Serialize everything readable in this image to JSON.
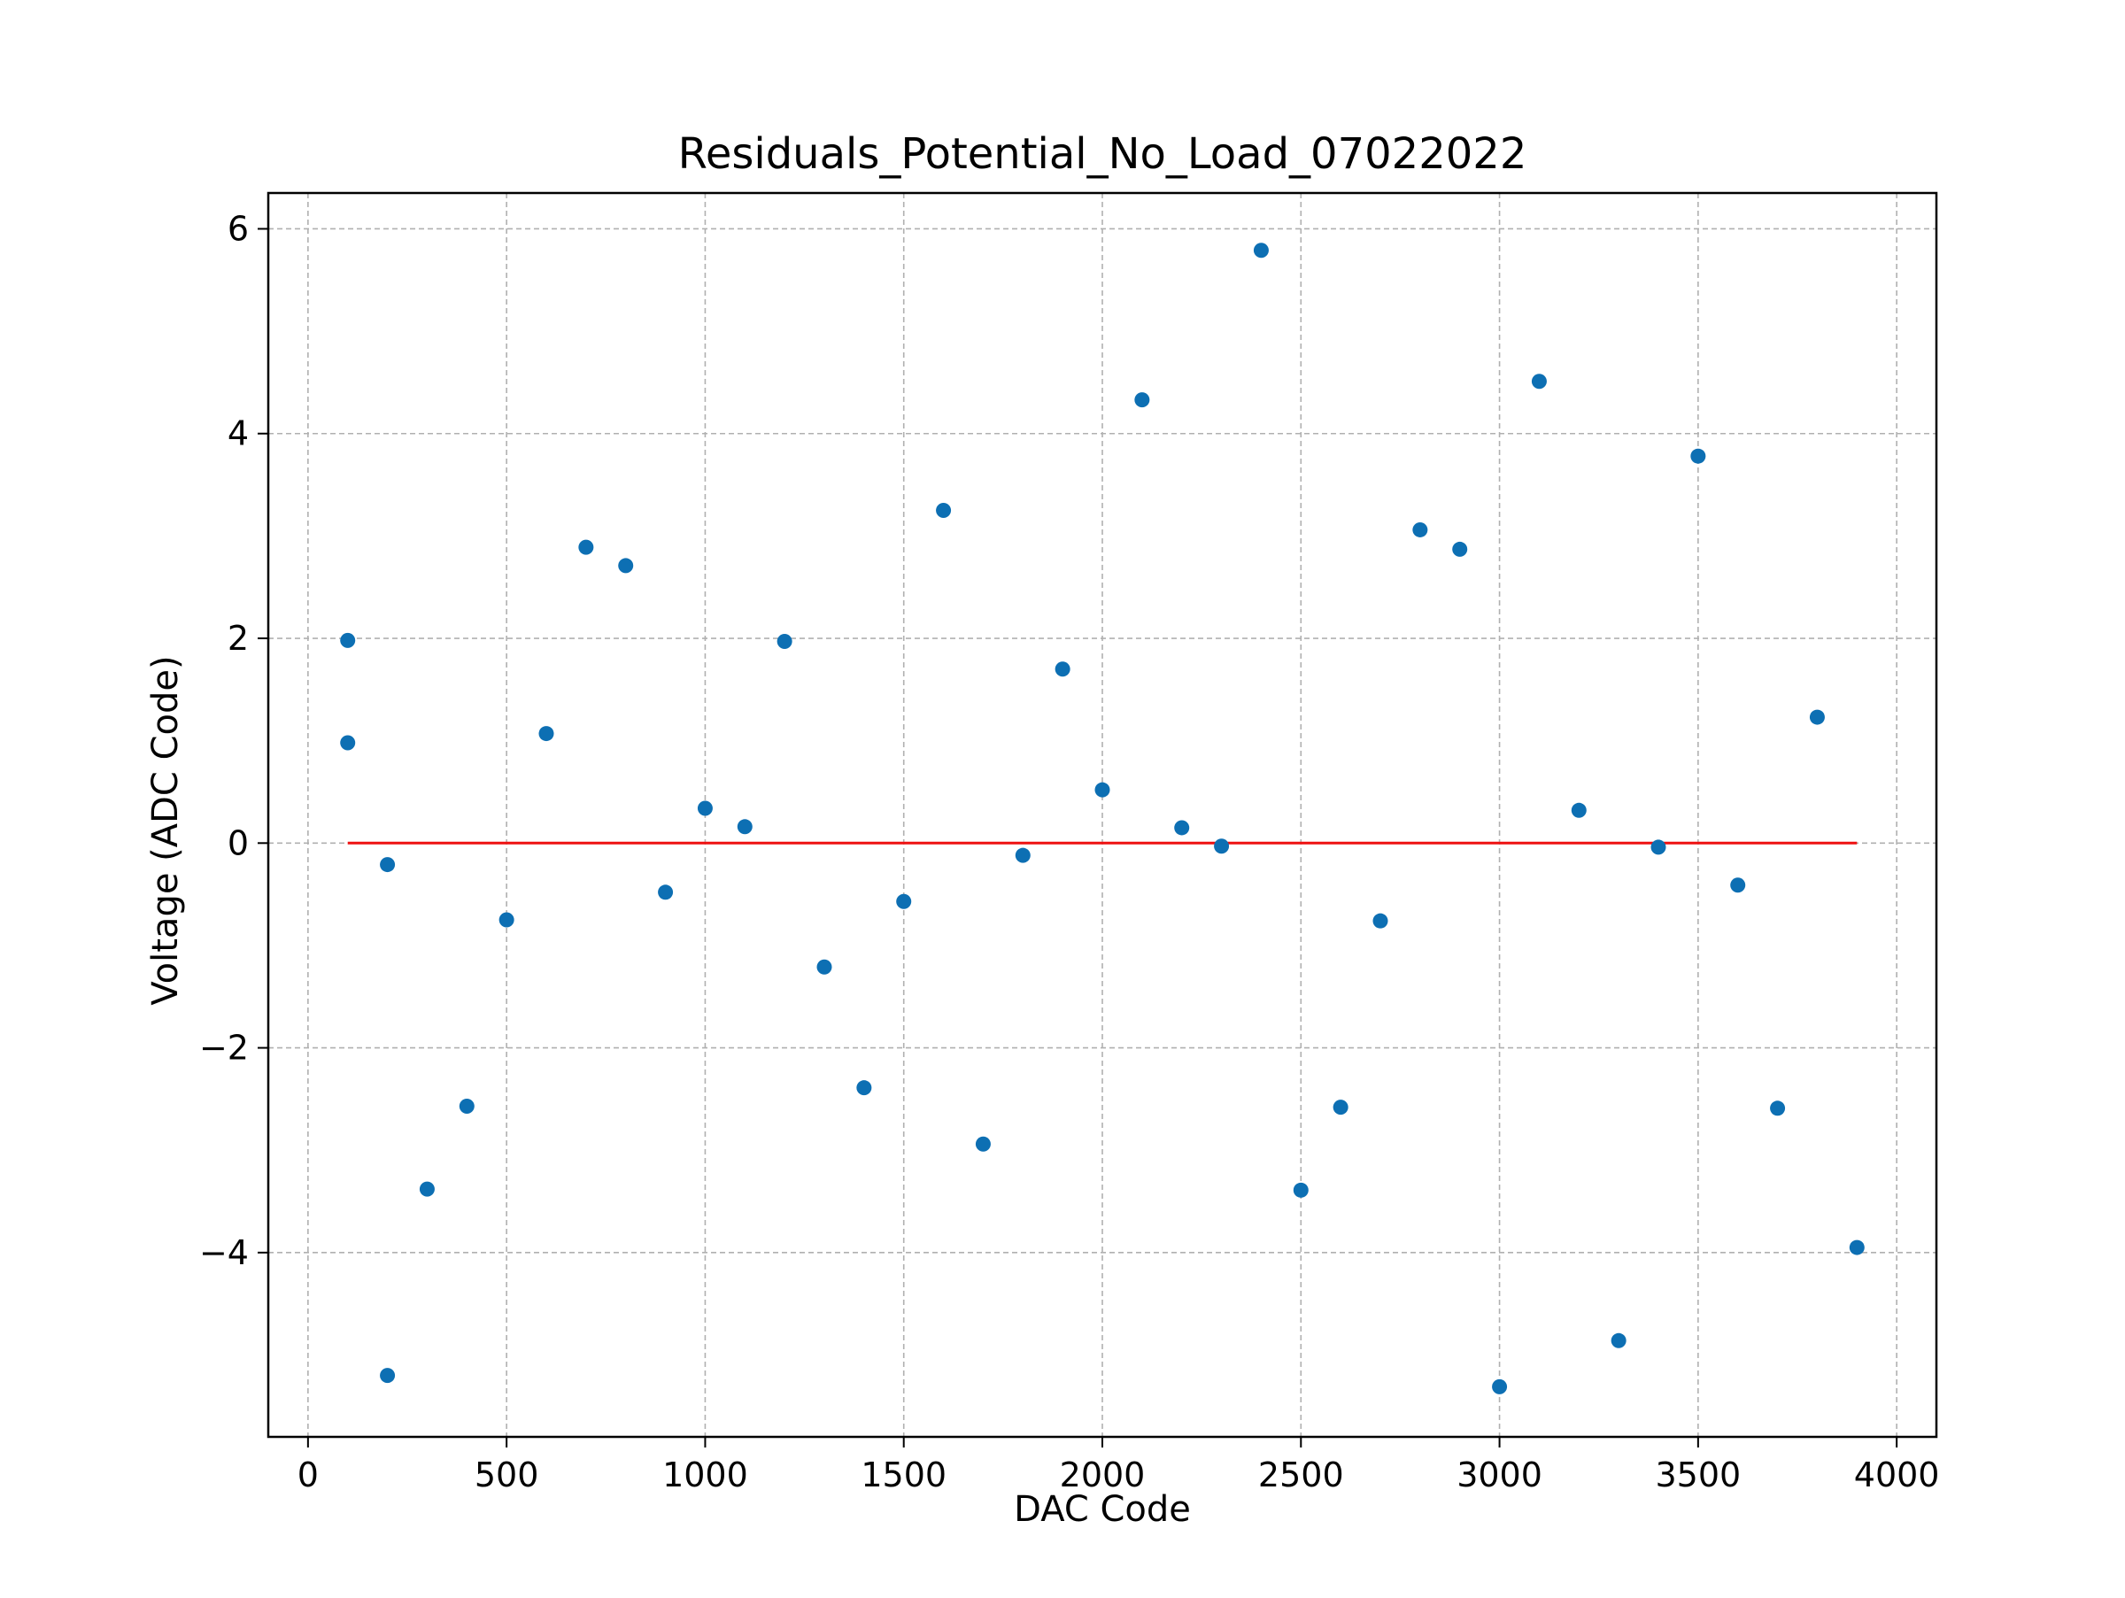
{
  "chart_data": {
    "type": "scatter",
    "title": "Residuals_Potential_No_Load_07022022",
    "xlabel": "DAC Code",
    "ylabel": "Voltage (ADC Code)",
    "xlim": [
      -100,
      4100
    ],
    "ylim": [
      -5.8,
      6.35
    ],
    "x_ticks": [
      0,
      500,
      1000,
      1500,
      2000,
      2500,
      3000,
      3500,
      4000
    ],
    "x_tick_labels": [
      "0",
      "500",
      "1000",
      "1500",
      "2000",
      "2500",
      "3000",
      "3500",
      "4000"
    ],
    "y_ticks": [
      6,
      4,
      2,
      0,
      -2,
      -4
    ],
    "y_tick_labels": [
      "6",
      "4",
      "2",
      "0",
      "−2",
      "−4"
    ],
    "grid": true,
    "grid_style": "dashed",
    "point_color": "#0d6fb3",
    "reference_line": {
      "color": "#ee1111",
      "y": 0,
      "x_start": 100,
      "x_end": 3900
    },
    "series": [
      {
        "points": [
          {
            "x": 100,
            "y": 1.98
          },
          {
            "x": 100,
            "y": 0.98
          },
          {
            "x": 200,
            "y": -0.21
          },
          {
            "x": 200,
            "y": -5.2
          },
          {
            "x": 300,
            "y": -3.38
          },
          {
            "x": 400,
            "y": -2.57
          },
          {
            "x": 500,
            "y": -0.75
          },
          {
            "x": 600,
            "y": 1.07
          },
          {
            "x": 700,
            "y": 2.89
          },
          {
            "x": 800,
            "y": 2.71
          },
          {
            "x": 900,
            "y": -0.48
          },
          {
            "x": 1000,
            "y": 0.34
          },
          {
            "x": 1100,
            "y": 0.16
          },
          {
            "x": 1200,
            "y": 1.97
          },
          {
            "x": 1300,
            "y": -1.21
          },
          {
            "x": 1400,
            "y": -2.39
          },
          {
            "x": 1500,
            "y": -0.57
          },
          {
            "x": 1600,
            "y": 3.25
          },
          {
            "x": 1700,
            "y": -2.94
          },
          {
            "x": 1800,
            "y": -0.12
          },
          {
            "x": 1900,
            "y": 1.7
          },
          {
            "x": 2000,
            "y": 0.52
          },
          {
            "x": 2100,
            "y": 4.33
          },
          {
            "x": 2200,
            "y": 0.15
          },
          {
            "x": 2300,
            "y": -0.03
          },
          {
            "x": 2400,
            "y": 5.79
          },
          {
            "x": 2500,
            "y": -3.39
          },
          {
            "x": 2600,
            "y": -2.58
          },
          {
            "x": 2700,
            "y": -0.76
          },
          {
            "x": 2800,
            "y": 3.06
          },
          {
            "x": 2900,
            "y": 2.87
          },
          {
            "x": 3000,
            "y": -5.31
          },
          {
            "x": 3100,
            "y": 4.51
          },
          {
            "x": 3200,
            "y": 0.32
          },
          {
            "x": 3300,
            "y": -4.86
          },
          {
            "x": 3400,
            "y": -0.04
          },
          {
            "x": 3500,
            "y": 3.78
          },
          {
            "x": 3600,
            "y": -0.41
          },
          {
            "x": 3700,
            "y": -2.59
          },
          {
            "x": 3800,
            "y": 1.23
          },
          {
            "x": 3900,
            "y": -3.95
          }
        ]
      }
    ]
  }
}
